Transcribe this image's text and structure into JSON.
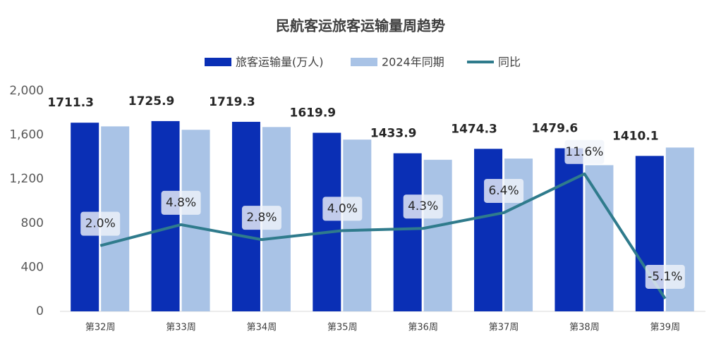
{
  "chart_data": {
    "type": "bar_line",
    "title": "民航客运旅客运输量周趋势",
    "categories": [
      "第32周",
      "第33周",
      "第34周",
      "第35周",
      "第36周",
      "第37周",
      "第38周",
      "第39周"
    ],
    "series": [
      {
        "name": "旅客运输量(万人)",
        "color": "#0a2fb5",
        "type": "bar",
        "values": [
          1711.3,
          1725.9,
          1719.3,
          1619.9,
          1433.9,
          1474.3,
          1479.6,
          1410.1
        ]
      },
      {
        "name": "2024年同期",
        "color": "#a9c3e6",
        "type": "bar",
        "values": [
          1678,
          1647,
          1672,
          1558,
          1375,
          1386,
          1326,
          1486
        ]
      },
      {
        "name": "同比",
        "color": "#2f7b8c",
        "type": "line",
        "axis": "y2",
        "values": [
          2.0,
          4.8,
          2.8,
          4.0,
          4.3,
          6.4,
          11.6,
          -5.1
        ],
        "value_labels": [
          "2.0%",
          "4.8%",
          "2.8%",
          "4.0%",
          "4.3%",
          "6.4%",
          "11.6%",
          "-5.1%"
        ]
      }
    ],
    "ylim": [
      0,
      2000
    ],
    "yticks": [
      0,
      400,
      800,
      {
        "value": 1200,
        "label": "1,200"
      },
      {
        "value": 1600,
        "label": "1,600"
      },
      {
        "value": 2000,
        "label": "2,000"
      }
    ],
    "y2lim": [
      -6.8,
      22.7
    ],
    "legend": "top"
  }
}
